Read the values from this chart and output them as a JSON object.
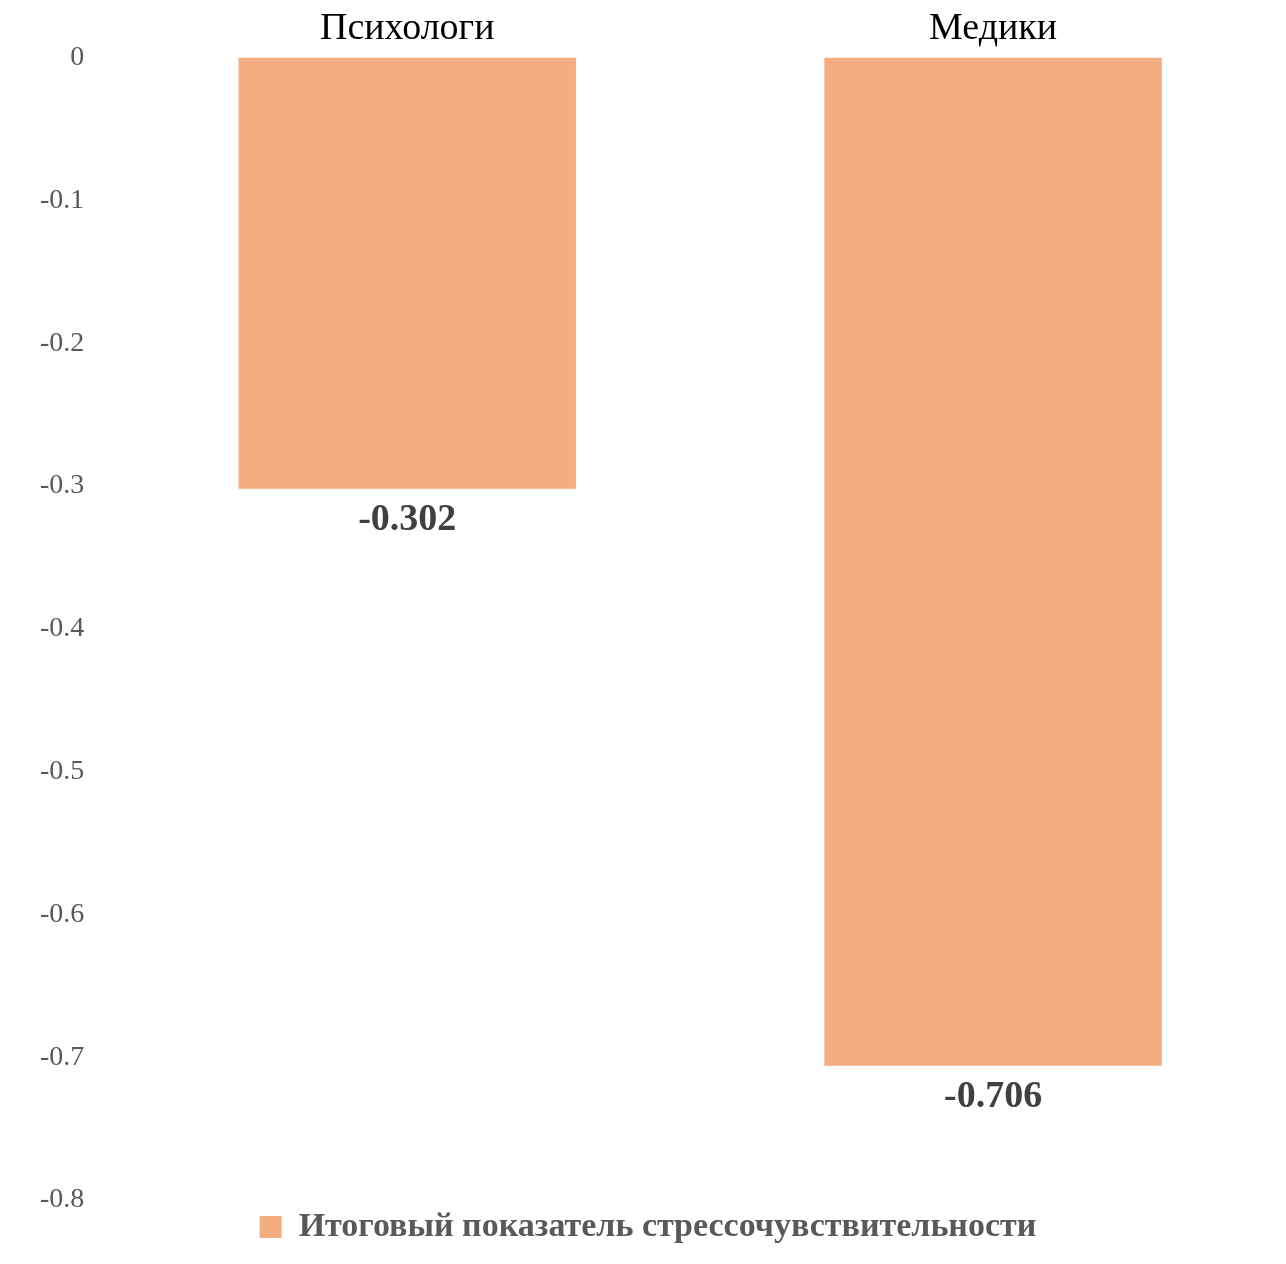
{
  "chart_data": {
    "type": "bar",
    "categories": [
      "Психологи",
      "Медики"
    ],
    "series": [
      {
        "name": "Итоговый показатель стрессочувствительности",
        "color": "#f4ad80",
        "values": [
          -0.302,
          -0.706
        ]
      }
    ],
    "ylim": [
      -0.8,
      0
    ],
    "yticks": [
      0,
      -0.1,
      -0.2,
      -0.3,
      -0.4,
      -0.5,
      -0.6,
      -0.7,
      -0.8
    ],
    "grid": false,
    "legend": "bottom",
    "data_labels": true
  }
}
